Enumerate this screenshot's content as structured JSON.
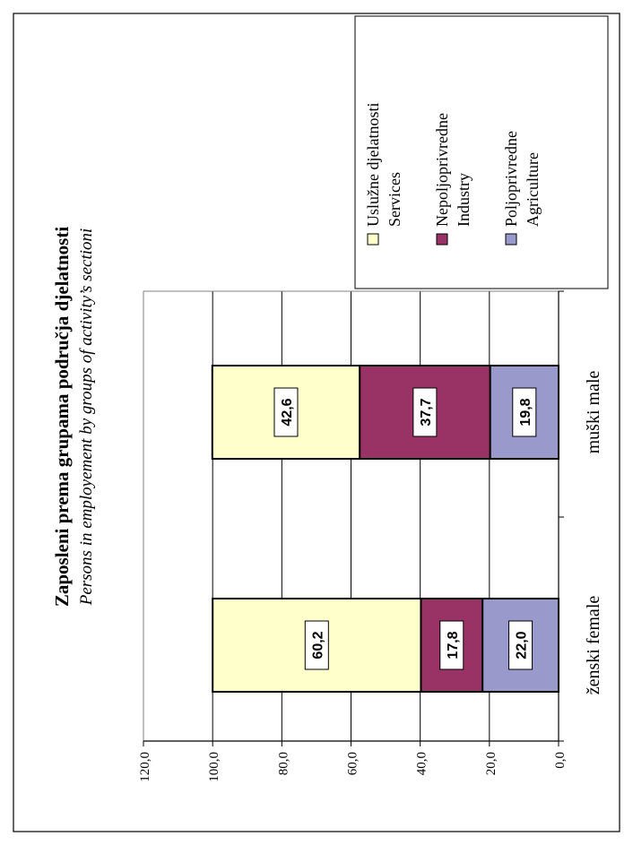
{
  "chart_data": {
    "type": "bar",
    "orientation": "stacked-100",
    "title": "Zaposleni prema grupama područja djelatnosti",
    "subtitle": "Persons in employement by groups of activity’s sectioni",
    "categories": [
      "ženski female",
      "muški male"
    ],
    "series": [
      {
        "name_line1": "Poljoprivredne",
        "name_line2": "Agriculture",
        "color": "#9999cc",
        "values": [
          22.0,
          19.8
        ],
        "labels": [
          "22,0",
          "19,8"
        ]
      },
      {
        "name_line1": "Nepoljoprivredne",
        "name_line2": "Industry",
        "color": "#993366",
        "values": [
          17.8,
          37.7
        ],
        "labels": [
          "17,8",
          "37,7"
        ]
      },
      {
        "name_line1": "Uslužne djelatnosti",
        "name_line2": "Services",
        "color": "#ffffcc",
        "values": [
          60.2,
          42.6
        ],
        "labels": [
          "60,2",
          "42,6"
        ]
      }
    ],
    "ylim": [
      0,
      120
    ],
    "yticks": [
      0,
      20,
      40,
      60,
      80,
      100,
      120
    ],
    "ytick_labels": [
      "0,0",
      "20,0",
      "40,0",
      "60,0",
      "80,0",
      "100,0",
      "120,0"
    ],
    "grid": true,
    "legend_position": "top-right"
  }
}
